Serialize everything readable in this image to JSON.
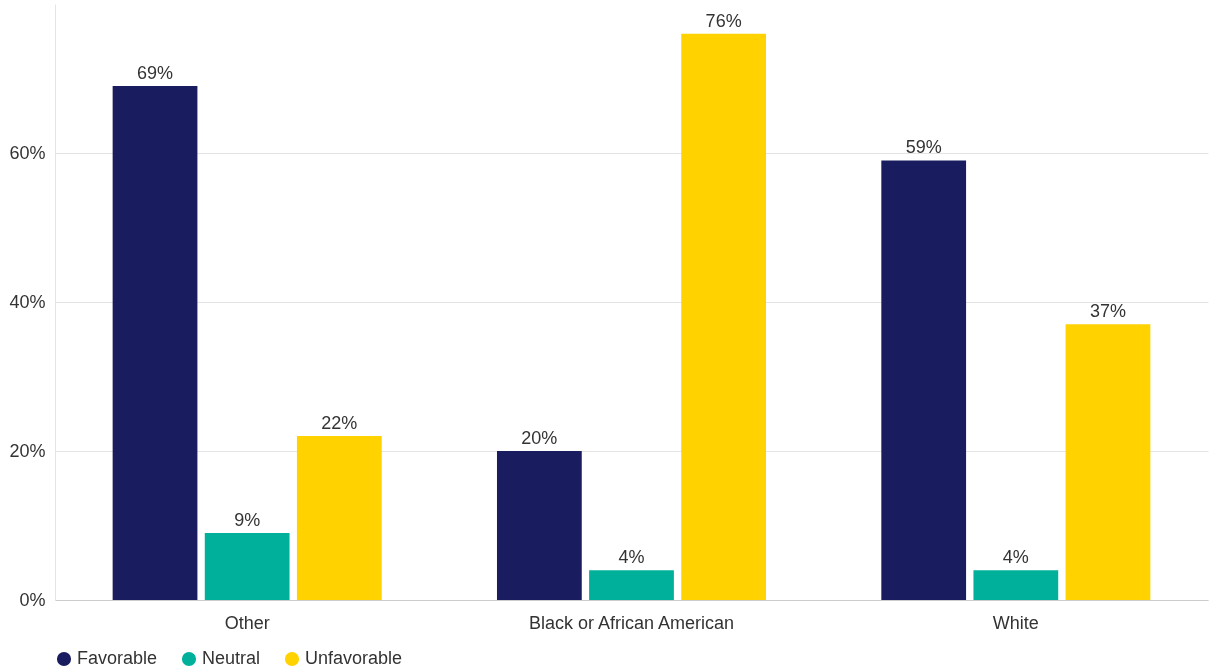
{
  "chart_data": {
    "type": "bar",
    "categories": [
      "Other",
      "Black or African American",
      "White"
    ],
    "series": [
      {
        "name": "Favorable",
        "color": "#191c5e",
        "values": [
          69,
          20,
          59
        ],
        "value_labels": [
          "69%",
          "20%",
          "59%"
        ]
      },
      {
        "name": "Neutral",
        "color": "#00b09b",
        "values": [
          9,
          4,
          4
        ],
        "value_labels": [
          "9%",
          "4%",
          "4%"
        ]
      },
      {
        "name": "Unfavorable",
        "color": "#ffd200",
        "values": [
          22,
          76,
          37
        ],
        "value_labels": [
          "22%",
          "76%",
          "37%"
        ]
      }
    ],
    "ylim": [
      0,
      80
    ],
    "yticks": [
      {
        "value": 0,
        "label": "0%"
      },
      {
        "value": 20,
        "label": "20%"
      },
      {
        "value": 40,
        "label": "40%"
      },
      {
        "value": 60,
        "label": "60%"
      }
    ],
    "grid": "y",
    "legend": "bottom left"
  }
}
